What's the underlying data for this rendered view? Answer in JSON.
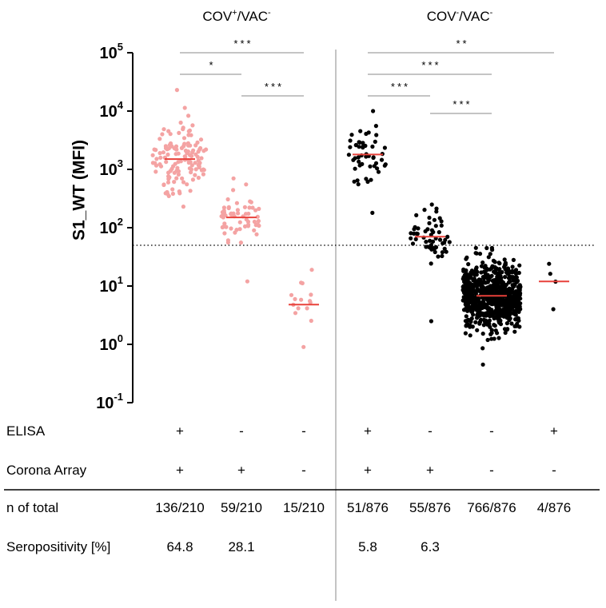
{
  "chart_data": {
    "type": "scatter",
    "ylabel": "S1_WT (MFI)",
    "yscale": "log10",
    "ylim": [
      0.1,
      100000
    ],
    "yticks": [
      {
        "value": 0.1,
        "base": "10",
        "exp": "-1"
      },
      {
        "value": 1,
        "base": "10",
        "exp": "0"
      },
      {
        "value": 10,
        "base": "10",
        "exp": "1"
      },
      {
        "value": 100,
        "base": "10",
        "exp": "2"
      },
      {
        "value": 1000,
        "base": "10",
        "exp": "3"
      },
      {
        "value": 10000,
        "base": "10",
        "exp": "4"
      },
      {
        "value": 100000,
        "base": "10",
        "exp": "5"
      }
    ],
    "cutoff": 50,
    "groups": [
      {
        "base": "COV",
        "sup1": "+",
        "mid": "/VAC",
        "sup2": "-"
      },
      {
        "base": "COV",
        "sup1": "-",
        "mid": "/VAC",
        "sup2": "-"
      }
    ],
    "series": [
      {
        "name": "COV+/VAC- ELISA+ Array+",
        "group": 0,
        "color": "#f4a3a3",
        "n": 136,
        "median": 1500,
        "min": 230,
        "max": 23000
      },
      {
        "name": "COV+/VAC- ELISA- Array+",
        "group": 0,
        "color": "#f4a3a3",
        "n": 59,
        "median": 150,
        "min": 12,
        "max": 700
      },
      {
        "name": "COV+/VAC- ELISA- Array-",
        "group": 0,
        "color": "#f4a3a3",
        "n": 15,
        "median": 4.8,
        "min": 0.9,
        "max": 19
      },
      {
        "name": "COV-/VAC- ELISA+ Array+",
        "group": 1,
        "color": "#000000",
        "n": 51,
        "median": 1800,
        "min": 180,
        "max": 10000
      },
      {
        "name": "COV-/VAC- ELISA- Array+",
        "group": 1,
        "color": "#000000",
        "n": 55,
        "median": 70,
        "min": 2.5,
        "max": 250
      },
      {
        "name": "COV-/VAC- ELISA- Array-",
        "group": 1,
        "color": "#000000",
        "n": 766,
        "median": 6.8,
        "min": 0.45,
        "max": 45
      },
      {
        "name": "COV-/VAC- ELISA+ Array-",
        "group": 1,
        "color": "#000000",
        "n": 4,
        "median": 12,
        "min": 4,
        "max": 24
      }
    ],
    "median_color": "#e8413a",
    "significance": [
      {
        "from": 0,
        "to": 2,
        "label": "***"
      },
      {
        "from": 0,
        "to": 1,
        "label": "*"
      },
      {
        "from": 1,
        "to": 2,
        "label": "***"
      },
      {
        "from": 3,
        "to": 6,
        "label": "**"
      },
      {
        "from": 3,
        "to": 5,
        "label": "***"
      },
      {
        "from": 3,
        "to": 4,
        "label": "***"
      },
      {
        "from": 4,
        "to": 5,
        "label": "***"
      }
    ]
  },
  "table": {
    "rows": [
      {
        "label": "ELISA",
        "values": [
          "+",
          "-",
          "-",
          "+",
          "-",
          "-",
          "+"
        ]
      },
      {
        "label": "Corona Array",
        "values": [
          "+",
          "+",
          "-",
          "+",
          "+",
          "-",
          "-"
        ]
      },
      {
        "label": "n of total",
        "values": [
          "136/210",
          "59/210",
          "15/210",
          "51/876",
          "55/876",
          "766/876",
          "4/876"
        ]
      },
      {
        "label": "Seropositivity [%]",
        "values": [
          "64.8",
          "28.1",
          "",
          "5.8",
          "6.3",
          "",
          ""
        ]
      }
    ]
  }
}
